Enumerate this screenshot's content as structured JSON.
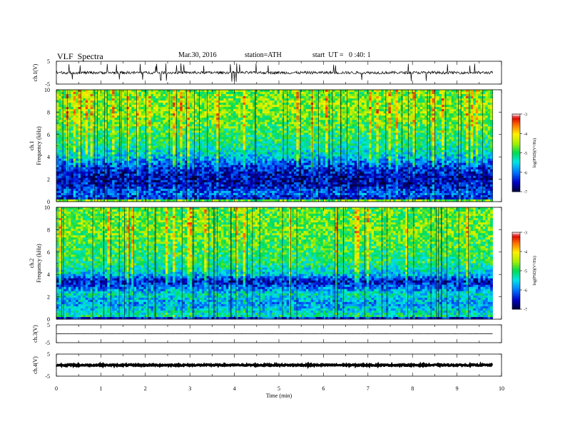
{
  "header": {
    "title": "VLF  Spectra",
    "date": "Mar.30, 2016",
    "station": "station=ATH",
    "start": "start  UT =   0 :40: 1"
  },
  "chart_data": [
    {
      "type": "line",
      "panel": "ch1-waveform",
      "ylabel": "ch.1(V)",
      "ylim": [
        -5,
        5
      ],
      "yticks": [
        "5",
        "-5"
      ],
      "xlim": [
        0,
        10
      ],
      "x_end": 9.8,
      "level": 0,
      "noise_amplitude": 1.2
    },
    {
      "type": "heatmap",
      "panel": "ch1-spectrogram",
      "ylabel_top": "ch.1",
      "ylabel": "Frequency  (kHz)",
      "ylim": [
        0,
        10
      ],
      "yticks": [
        "0",
        "2",
        "4",
        "6",
        "8",
        "10"
      ],
      "xlim": [
        0,
        10
      ],
      "x_end": 9.8,
      "colorbar": {
        "label": "log(PSD)(V²/Hz)",
        "range": [
          -7,
          -3
        ],
        "ticks": [
          "-3",
          "-4",
          "-5",
          "-6",
          "-7"
        ]
      },
      "profile_khz": [
        0,
        0.3,
        0.7,
        1.2,
        1.8,
        2.5,
        3.2,
        4.0,
        5.0,
        6.5,
        8.0,
        10.0
      ],
      "profile_logpsd": [
        -3.8,
        -6.5,
        -6.0,
        -6.4,
        -6.6,
        -6.5,
        -6.2,
        -5.6,
        -5.2,
        -4.9,
        -4.6,
        -4.7
      ]
    },
    {
      "type": "heatmap",
      "panel": "ch2-spectrogram",
      "ylabel_top": "ch.2",
      "ylabel": "Frequency  (kHz)",
      "ylim": [
        0,
        10
      ],
      "yticks": [
        "0",
        "2",
        "4",
        "6",
        "8",
        "10"
      ],
      "xlim": [
        0,
        10
      ],
      "x_end": 9.8,
      "colorbar": {
        "label": "log(PSD)(V²/Hz)",
        "range": [
          -7,
          -3
        ],
        "ticks": [
          "-3",
          "-4",
          "-5",
          "-6",
          "-7"
        ]
      },
      "profile_khz": [
        0,
        0.3,
        0.8,
        1.5,
        2.2,
        2.8,
        3.4,
        4.0,
        5.0,
        6.5,
        8.0,
        10.0
      ],
      "profile_logpsd": [
        -6.8,
        -5.2,
        -5.6,
        -5.8,
        -5.4,
        -6.0,
        -6.5,
        -5.6,
        -5.1,
        -4.9,
        -4.7,
        -4.8
      ]
    },
    {
      "type": "line",
      "panel": "ch3-waveform",
      "ylabel": "ch.3(V)",
      "ylim": [
        -5,
        5
      ],
      "yticks": [
        "5",
        "-5"
      ],
      "xlim": [
        0,
        10
      ],
      "x_end": 9.8,
      "level": 0,
      "noise_amplitude": 0.1
    },
    {
      "type": "line",
      "panel": "ch4-waveform",
      "ylabel": "ch.4(V)",
      "ylim": [
        -5,
        5
      ],
      "yticks": [
        "5",
        "-5"
      ],
      "xlim": [
        0,
        10
      ],
      "x_end": 9.8,
      "level": 0,
      "noise_amplitude": 0.6,
      "xlabel": "Time  (min)",
      "xticks": [
        "0",
        "1",
        "2",
        "3",
        "4",
        "5",
        "6",
        "7",
        "8",
        "9",
        "10"
      ]
    }
  ]
}
